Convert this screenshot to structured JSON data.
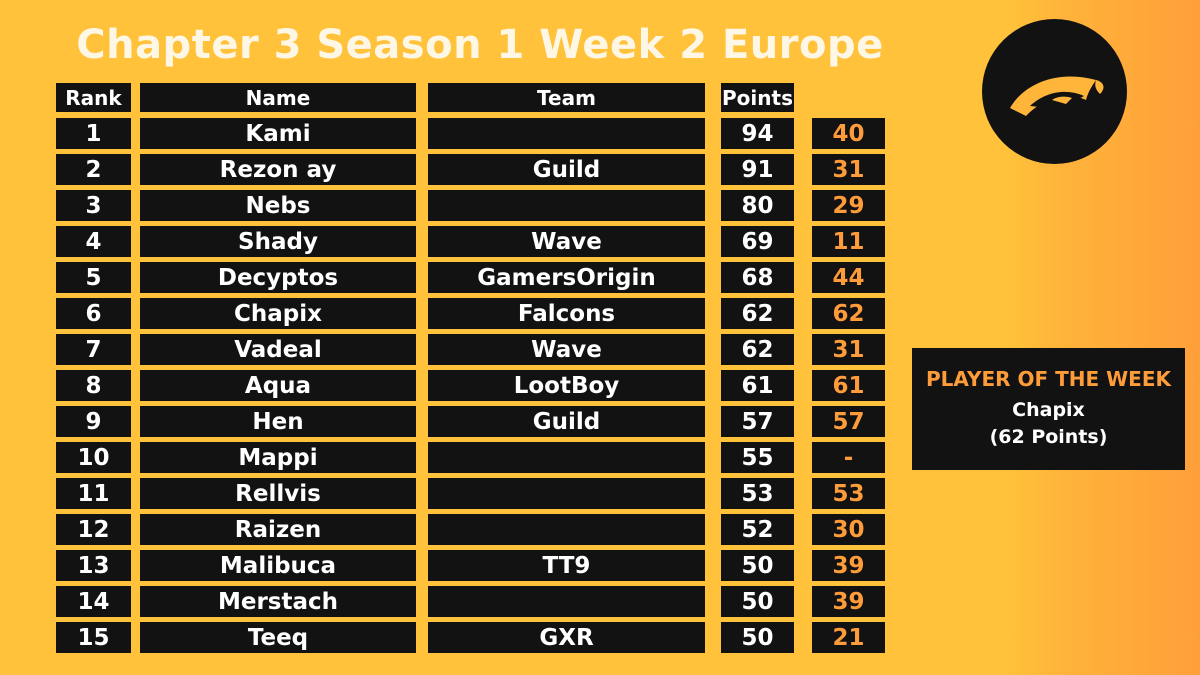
{
  "title": "Chapter 3 Season 1 Week 2 Europe",
  "headers": {
    "rank": "Rank",
    "name": "Name",
    "team": "Team",
    "points": "Points"
  },
  "rows": [
    {
      "rank": "1",
      "name": "Kami",
      "team": "",
      "points": "94",
      "delta": "40"
    },
    {
      "rank": "2",
      "name": "Rezon ay",
      "team": "Guild",
      "points": "91",
      "delta": "31"
    },
    {
      "rank": "3",
      "name": "Nebs",
      "team": "",
      "points": "80",
      "delta": "29"
    },
    {
      "rank": "4",
      "name": "Shady",
      "team": "Wave",
      "points": "69",
      "delta": "11"
    },
    {
      "rank": "5",
      "name": "Decyptos",
      "team": "GamersOrigin",
      "points": "68",
      "delta": "44"
    },
    {
      "rank": "6",
      "name": "Chapix",
      "team": "Falcons",
      "points": "62",
      "delta": "62"
    },
    {
      "rank": "7",
      "name": "Vadeal",
      "team": "Wave",
      "points": "62",
      "delta": "31"
    },
    {
      "rank": "8",
      "name": "Aqua",
      "team": "LootBoy",
      "points": "61",
      "delta": "61"
    },
    {
      "rank": "9",
      "name": "Hen",
      "team": "Guild",
      "points": "57",
      "delta": "57"
    },
    {
      "rank": "10",
      "name": "Mappi",
      "team": "",
      "points": "55",
      "delta": "-"
    },
    {
      "rank": "11",
      "name": "Rellvis",
      "team": "",
      "points": "53",
      "delta": "53"
    },
    {
      "rank": "12",
      "name": "Raizen",
      "team": "",
      "points": "52",
      "delta": "30"
    },
    {
      "rank": "13",
      "name": "Malibuca",
      "team": "TT9",
      "points": "50",
      "delta": "39"
    },
    {
      "rank": "14",
      "name": "Merstach",
      "team": "",
      "points": "50",
      "delta": "39"
    },
    {
      "rank": "15",
      "name": "Teeq",
      "team": "GXR",
      "points": "50",
      "delta": "21"
    }
  ],
  "player_of_week": {
    "label": "PLAYER OF THE WEEK",
    "name": "Chapix",
    "points": "(62 Points)"
  },
  "colors": {
    "background": "#ffc23a",
    "cell": "#121212",
    "accent": "#ff9c3a",
    "title": "#fff7e6"
  },
  "logo_icon": "eye-logo-icon"
}
